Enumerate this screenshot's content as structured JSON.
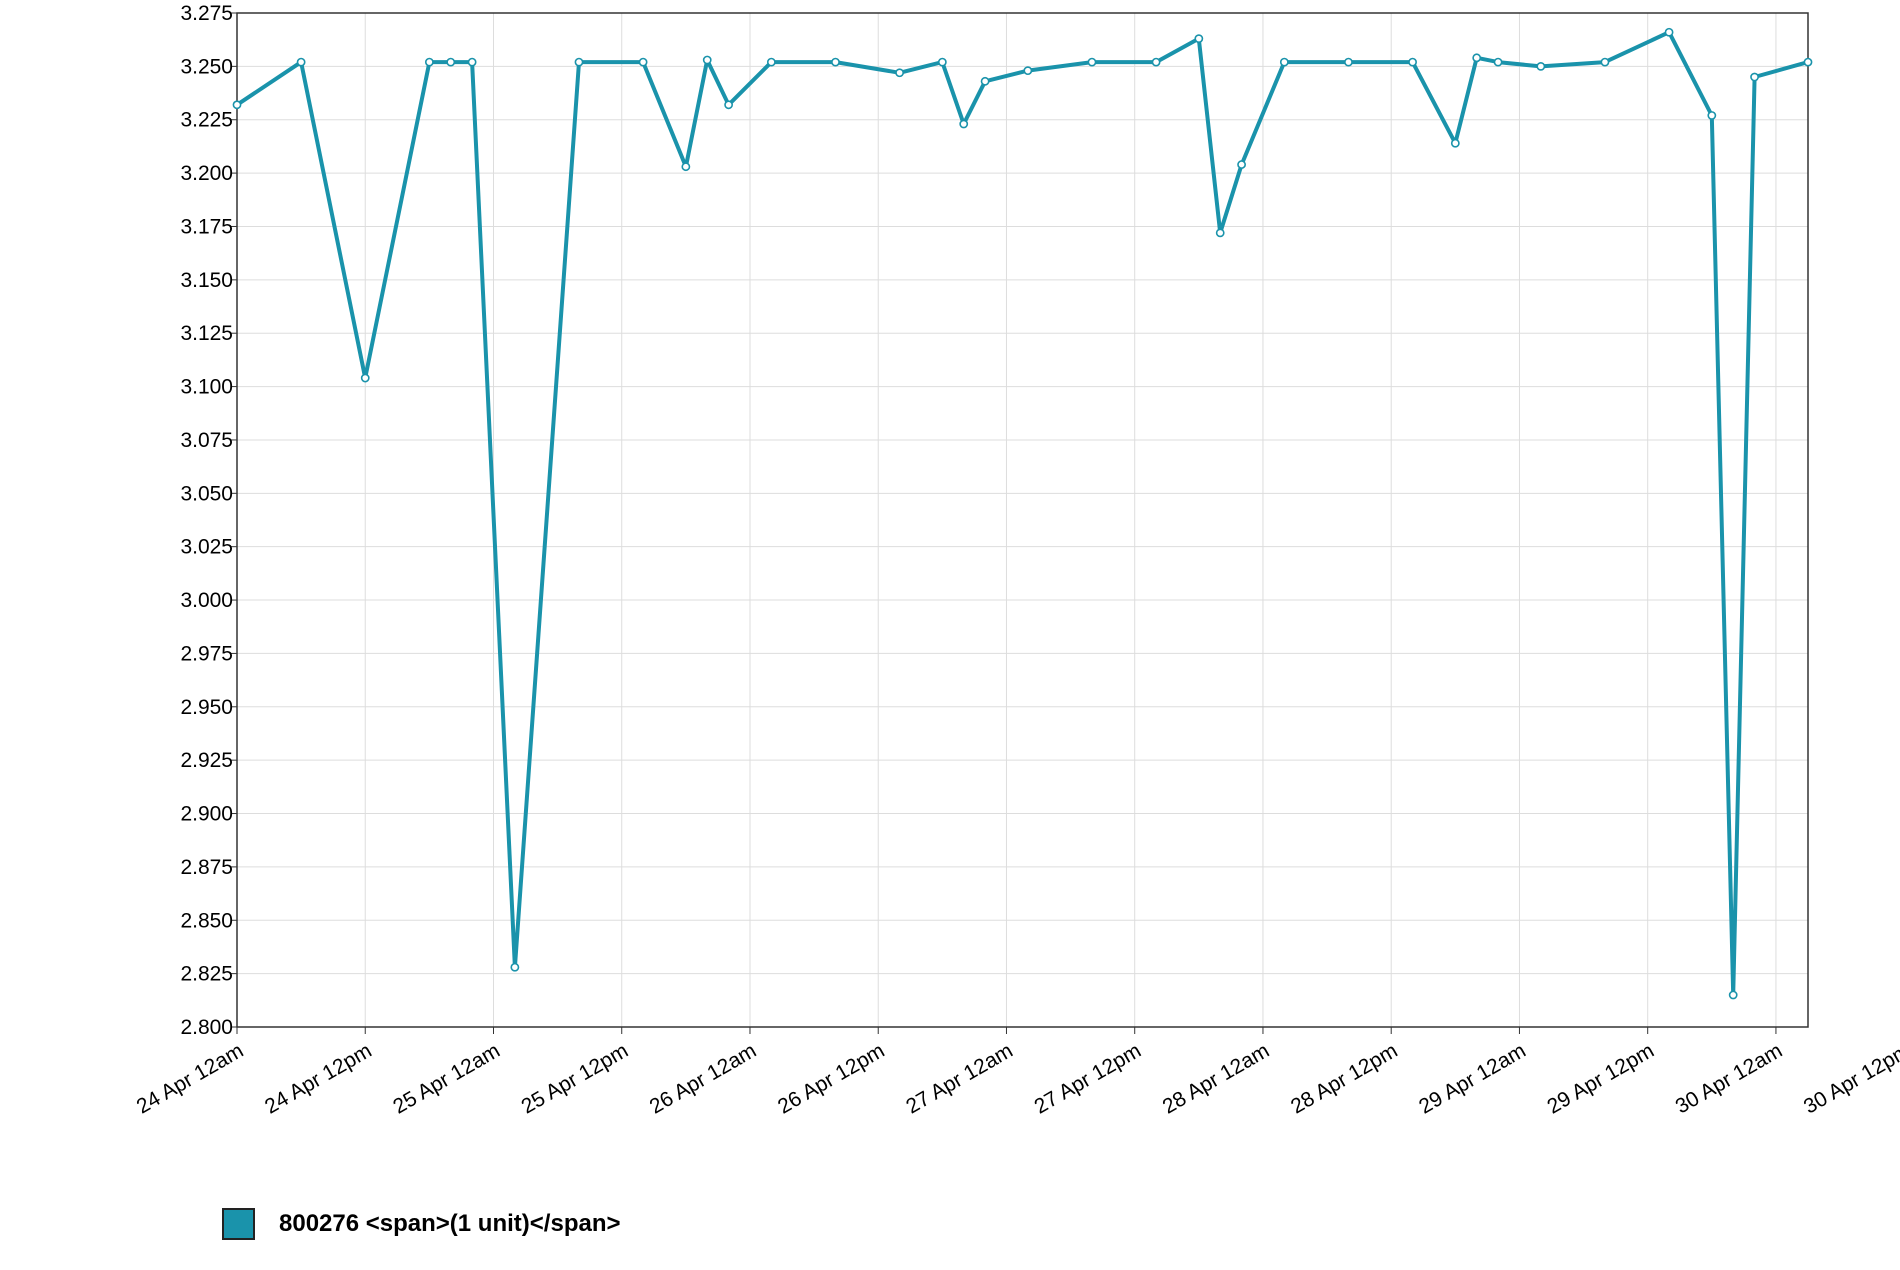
{
  "chart_data": {
    "type": "line",
    "title": "",
    "xlabel": "",
    "ylabel": "",
    "ylim": [
      2.8,
      3.275
    ],
    "y_tick_labels": [
      "2.800",
      "2.825",
      "2.850",
      "2.875",
      "2.900",
      "2.925",
      "2.950",
      "2.975",
      "3.000",
      "3.025",
      "3.050",
      "3.075",
      "3.100",
      "3.125",
      "3.150",
      "3.175",
      "3.200",
      "3.225",
      "3.250",
      "3.275"
    ],
    "xlim": [
      "2024-04-24 00:00",
      "2024-04-30 03:00"
    ],
    "x_ticks": [
      {
        "t": "2024-04-24 00:00",
        "label": "24 Apr 12am"
      },
      {
        "t": "2024-04-24 12:00",
        "label": "24 Apr 12pm"
      },
      {
        "t": "2024-04-25 00:00",
        "label": "25 Apr 12am"
      },
      {
        "t": "2024-04-25 12:00",
        "label": "25 Apr 12pm"
      },
      {
        "t": "2024-04-26 00:00",
        "label": "26 Apr 12am"
      },
      {
        "t": "2024-04-26 12:00",
        "label": "26 Apr 12pm"
      },
      {
        "t": "2024-04-27 00:00",
        "label": "27 Apr 12am"
      },
      {
        "t": "2024-04-27 12:00",
        "label": "27 Apr 12pm"
      },
      {
        "t": "2024-04-28 00:00",
        "label": "28 Apr 12am"
      },
      {
        "t": "2024-04-28 12:00",
        "label": "28 Apr 12pm"
      },
      {
        "t": "2024-04-29 00:00",
        "label": "29 Apr 12am"
      },
      {
        "t": "2024-04-29 12:00",
        "label": "29 Apr 12pm"
      },
      {
        "t": "2024-04-30 00:00",
        "label": "30 Apr 12am"
      },
      {
        "t": "2024-04-30 12:00",
        "label": "30 Apr 12pm"
      }
    ],
    "grid": true,
    "legend_position": "bottom-left",
    "series": [
      {
        "name": "800276 <span>(1 unit)</span>",
        "color": "#1a93ab",
        "points": [
          {
            "t": "2024-04-24 00:00",
            "y": 3.232
          },
          {
            "t": "2024-04-24 06:00",
            "y": 3.252
          },
          {
            "t": "2024-04-24 12:00",
            "y": 3.104
          },
          {
            "t": "2024-04-24 18:00",
            "y": 3.252
          },
          {
            "t": "2024-04-24 20:00",
            "y": 3.252
          },
          {
            "t": "2024-04-24 22:00",
            "y": 3.252
          },
          {
            "t": "2024-04-25 02:00",
            "y": 2.828
          },
          {
            "t": "2024-04-25 08:00",
            "y": 3.252
          },
          {
            "t": "2024-04-25 14:00",
            "y": 3.252
          },
          {
            "t": "2024-04-25 18:00",
            "y": 3.203
          },
          {
            "t": "2024-04-25 20:00",
            "y": 3.253
          },
          {
            "t": "2024-04-25 22:00",
            "y": 3.232
          },
          {
            "t": "2024-04-26 02:00",
            "y": 3.252
          },
          {
            "t": "2024-04-26 08:00",
            "y": 3.252
          },
          {
            "t": "2024-04-26 14:00",
            "y": 3.247
          },
          {
            "t": "2024-04-26 18:00",
            "y": 3.252
          },
          {
            "t": "2024-04-26 20:00",
            "y": 3.223
          },
          {
            "t": "2024-04-26 22:00",
            "y": 3.243
          },
          {
            "t": "2024-04-27 02:00",
            "y": 3.248
          },
          {
            "t": "2024-04-27 08:00",
            "y": 3.252
          },
          {
            "t": "2024-04-27 14:00",
            "y": 3.252
          },
          {
            "t": "2024-04-27 18:00",
            "y": 3.263
          },
          {
            "t": "2024-04-27 20:00",
            "y": 3.172
          },
          {
            "t": "2024-04-27 22:00",
            "y": 3.204
          },
          {
            "t": "2024-04-28 02:00",
            "y": 3.252
          },
          {
            "t": "2024-04-28 08:00",
            "y": 3.252
          },
          {
            "t": "2024-04-28 14:00",
            "y": 3.252
          },
          {
            "t": "2024-04-28 18:00",
            "y": 3.214
          },
          {
            "t": "2024-04-28 20:00",
            "y": 3.254
          },
          {
            "t": "2024-04-28 22:00",
            "y": 3.252
          },
          {
            "t": "2024-04-29 02:00",
            "y": 3.25
          },
          {
            "t": "2024-04-29 08:00",
            "y": 3.252
          },
          {
            "t": "2024-04-29 14:00",
            "y": 3.266
          },
          {
            "t": "2024-04-29 18:00",
            "y": 3.227
          },
          {
            "t": "2024-04-29 20:00",
            "y": 2.815
          },
          {
            "t": "2024-04-29 22:00",
            "y": 3.245
          },
          {
            "t": "2024-04-30 03:00",
            "y": 3.252
          }
        ]
      }
    ]
  },
  "legend": {
    "label": "800276 <span>(1 unit)</span>",
    "swatch_color": "#1a93ab"
  }
}
